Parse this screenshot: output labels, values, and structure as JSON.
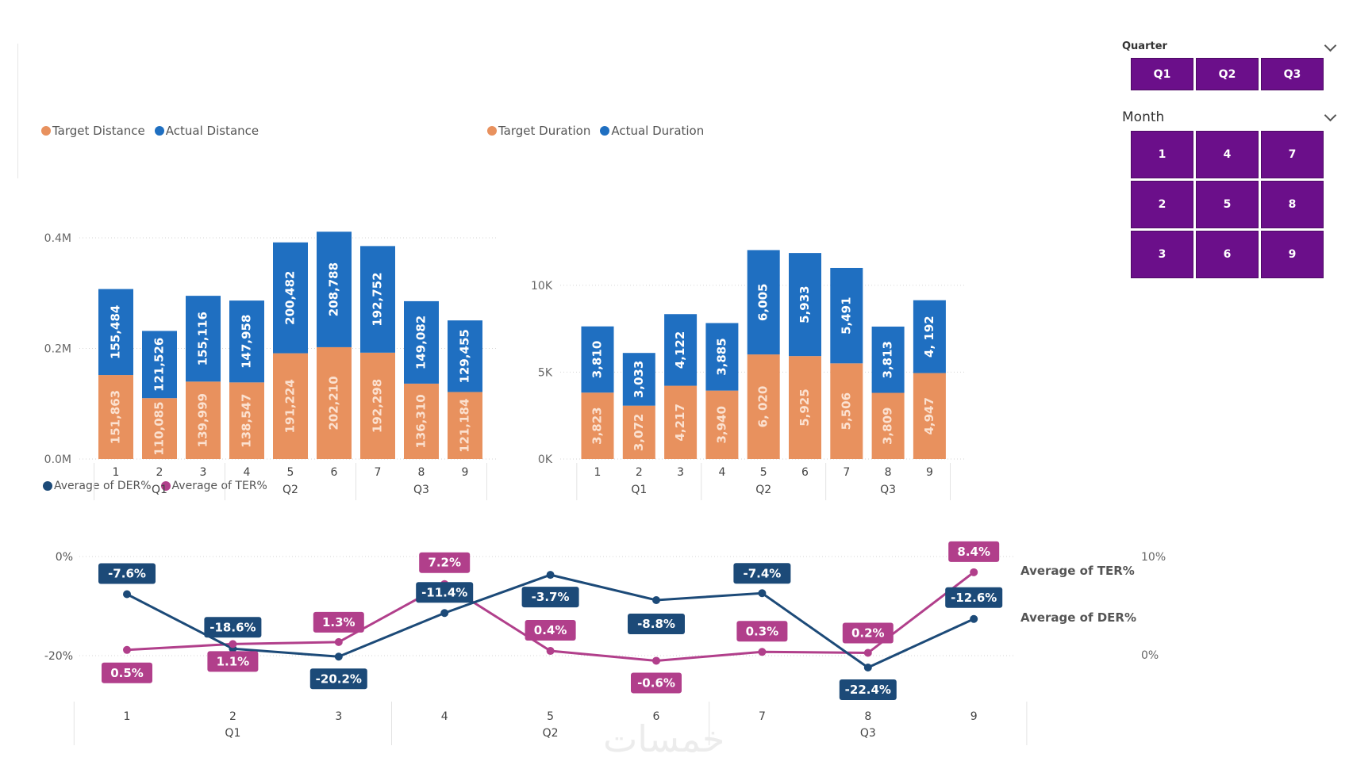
{
  "slicers": {
    "quarter": {
      "title": "Quarter",
      "options": [
        "Q1",
        "Q2",
        "Q3"
      ]
    },
    "month": {
      "title": "Month",
      "options": [
        "1",
        "4",
        "7",
        "2",
        "5",
        "8",
        "3",
        "6",
        "9"
      ]
    }
  },
  "watermark": "خمسات",
  "colors": {
    "target": "#e8915e",
    "actual": "#1f6fc1",
    "der": "#1c4a78",
    "ter": "#b13f8b",
    "slicer": "#6b0f8a"
  },
  "chart_data": [
    {
      "type": "bar",
      "stacked": true,
      "legend": [
        "Target Distance",
        "Actual Distance"
      ],
      "categories": [
        "1",
        "2",
        "3",
        "4",
        "5",
        "6",
        "7",
        "8",
        "9"
      ],
      "groups": [
        "Q1",
        "Q2",
        "Q3"
      ],
      "series": [
        {
          "name": "Target Distance",
          "values": [
            151863,
            110085,
            139999,
            138547,
            191224,
            202210,
            192298,
            136310,
            121184
          ],
          "labels": [
            "151,863",
            "110,085",
            "139,999",
            "138,547",
            "191,224",
            "202,210",
            "192,298",
            "136,310",
            "121,184"
          ]
        },
        {
          "name": "Actual Distance",
          "values": [
            155484,
            121526,
            155116,
            147958,
            200482,
            208788,
            192752,
            149082,
            129455
          ],
          "labels": [
            "155,484",
            "121,526",
            "155,116",
            "147,958",
            "200,482",
            "208,788",
            "192,752",
            "149,082",
            "129,455"
          ]
        }
      ],
      "yticks": [
        "0.0M",
        "0.2M",
        "0.4M"
      ],
      "ytick_values": [
        0,
        200000,
        400000
      ],
      "ylim": [
        0,
        420000
      ]
    },
    {
      "type": "bar",
      "stacked": true,
      "legend": [
        "Target Duration",
        "Actual Duration"
      ],
      "categories": [
        "1",
        "2",
        "3",
        "4",
        "5",
        "6",
        "7",
        "8",
        "9"
      ],
      "groups": [
        "Q1",
        "Q2",
        "Q3"
      ],
      "series": [
        {
          "name": "Target Duration",
          "values": [
            3823,
            3072,
            4217,
            3940,
            6020,
            5925,
            5506,
            3809,
            4947
          ],
          "labels": [
            "3,823",
            "3,072",
            "4,217",
            "3,940",
            "6, 020",
            "5,925",
            "5,506",
            "3,809",
            "4,947"
          ]
        },
        {
          "name": "Actual Duration",
          "values": [
            3810,
            3033,
            4122,
            3885,
            6005,
            5933,
            5491,
            3813,
            4192
          ],
          "labels": [
            "3,810",
            "3,033",
            "4,122",
            "3,885",
            "6,005",
            "5,933",
            "5,491",
            "3,813",
            "4, 192"
          ]
        }
      ],
      "yticks": [
        "0K",
        "5K",
        "10K"
      ],
      "ytick_values": [
        0,
        5000,
        10000
      ],
      "ylim": [
        0,
        12000
      ]
    },
    {
      "type": "line",
      "legend": [
        "Average of DER%",
        "Average of TER%"
      ],
      "categories": [
        "1",
        "2",
        "3",
        "4",
        "5",
        "6",
        "7",
        "8",
        "9"
      ],
      "groups": [
        "Q1",
        "Q2",
        "Q3"
      ],
      "series": [
        {
          "name": "Average of DER%",
          "values": [
            -7.6,
            -18.6,
            -20.2,
            -11.4,
            -3.7,
            -8.8,
            -7.4,
            -22.4,
            -12.6
          ],
          "labels": [
            "-7.6%",
            "-18.6%",
            "-20.2%",
            "-11.4%",
            "-3.7%",
            "-8.8%",
            "-7.4%",
            "-22.4%",
            "-12.6%"
          ]
        },
        {
          "name": "Average of TER%",
          "values": [
            0.5,
            1.1,
            1.3,
            7.2,
            0.4,
            -0.6,
            0.3,
            0.2,
            8.4
          ],
          "labels": [
            "0.5%",
            "1.1%",
            "1.3%",
            "7.2%",
            "0.4%",
            "-0.6%",
            "0.3%",
            "0.2%",
            "8.4%"
          ]
        }
      ],
      "y_left_ticks": [
        "0%",
        "-20%"
      ],
      "y_left_tick_values": [
        0,
        -20
      ],
      "y_right_ticks": [
        "10%",
        "0%"
      ],
      "y_right_tick_values": [
        10,
        0
      ],
      "right_axis_titles": [
        "Average of TER%",
        "Average of DER%"
      ]
    }
  ]
}
